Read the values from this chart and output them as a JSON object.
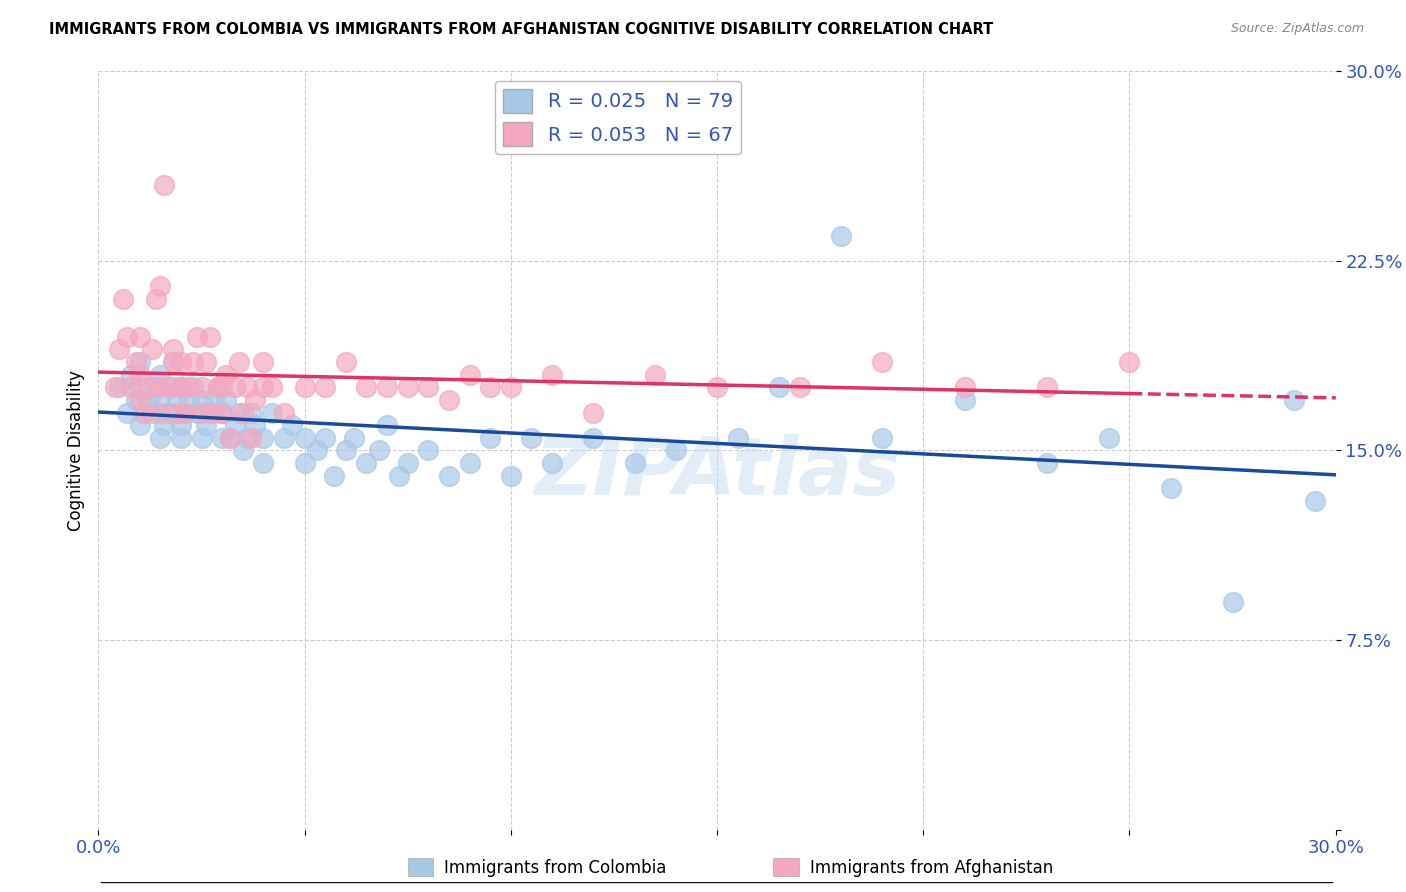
{
  "title": "IMMIGRANTS FROM COLOMBIA VS IMMIGRANTS FROM AFGHANISTAN COGNITIVE DISABILITY CORRELATION CHART",
  "source": "Source: ZipAtlas.com",
  "ylabel": "Cognitive Disability",
  "xlim": [
    0.0,
    0.3
  ],
  "ylim": [
    0.0,
    0.3
  ],
  "xticks": [
    0.0,
    0.05,
    0.1,
    0.15,
    0.2,
    0.25,
    0.3
  ],
  "yticks": [
    0.0,
    0.075,
    0.15,
    0.225,
    0.3
  ],
  "xtick_labels": [
    "0.0%",
    "",
    "",
    "",
    "",
    "",
    "30.0%"
  ],
  "ytick_labels": [
    "",
    "7.5%",
    "15.0%",
    "22.5%",
    "30.0%"
  ],
  "colombia_color": "#a8c8e8",
  "afghanistan_color": "#f4a8c0",
  "colombia_line_color": "#1a4a9a",
  "afghanistan_line_color": "#dd3366",
  "R_colombia": 0.025,
  "N_colombia": 79,
  "R_afghanistan": 0.053,
  "N_afghanistan": 67,
  "legend_label_colombia": "Immigrants from Colombia",
  "legend_label_afghanistan": "Immigrants from Afghanistan",
  "watermark": "ZIPAtlas",
  "colombia_x": [
    0.005,
    0.007,
    0.008,
    0.009,
    0.01,
    0.01,
    0.01,
    0.012,
    0.013,
    0.014,
    0.015,
    0.015,
    0.015,
    0.016,
    0.017,
    0.018,
    0.018,
    0.019,
    0.02,
    0.02,
    0.02,
    0.021,
    0.022,
    0.023,
    0.024,
    0.025,
    0.025,
    0.026,
    0.027,
    0.028,
    0.029,
    0.03,
    0.03,
    0.031,
    0.032,
    0.033,
    0.034,
    0.035,
    0.036,
    0.037,
    0.038,
    0.04,
    0.04,
    0.042,
    0.045,
    0.047,
    0.05,
    0.05,
    0.053,
    0.055,
    0.057,
    0.06,
    0.062,
    0.065,
    0.068,
    0.07,
    0.073,
    0.075,
    0.08,
    0.085,
    0.09,
    0.095,
    0.1,
    0.105,
    0.11,
    0.12,
    0.13,
    0.14,
    0.155,
    0.165,
    0.18,
    0.19,
    0.21,
    0.23,
    0.245,
    0.26,
    0.275,
    0.29,
    0.295
  ],
  "colombia_y": [
    0.175,
    0.165,
    0.18,
    0.17,
    0.16,
    0.175,
    0.185,
    0.17,
    0.165,
    0.175,
    0.155,
    0.17,
    0.18,
    0.16,
    0.165,
    0.175,
    0.185,
    0.17,
    0.155,
    0.16,
    0.175,
    0.165,
    0.17,
    0.175,
    0.165,
    0.155,
    0.17,
    0.16,
    0.165,
    0.17,
    0.175,
    0.155,
    0.165,
    0.17,
    0.155,
    0.16,
    0.165,
    0.15,
    0.155,
    0.165,
    0.16,
    0.145,
    0.155,
    0.165,
    0.155,
    0.16,
    0.145,
    0.155,
    0.15,
    0.155,
    0.14,
    0.15,
    0.155,
    0.145,
    0.15,
    0.16,
    0.14,
    0.145,
    0.15,
    0.14,
    0.145,
    0.155,
    0.14,
    0.155,
    0.145,
    0.155,
    0.145,
    0.15,
    0.155,
    0.175,
    0.235,
    0.155,
    0.17,
    0.145,
    0.155,
    0.135,
    0.09,
    0.17,
    0.13
  ],
  "afghanistan_x": [
    0.004,
    0.005,
    0.006,
    0.007,
    0.008,
    0.009,
    0.01,
    0.01,
    0.01,
    0.011,
    0.012,
    0.013,
    0.014,
    0.015,
    0.015,
    0.015,
    0.016,
    0.017,
    0.018,
    0.018,
    0.019,
    0.02,
    0.02,
    0.021,
    0.022,
    0.023,
    0.024,
    0.025,
    0.025,
    0.026,
    0.027,
    0.028,
    0.029,
    0.03,
    0.03,
    0.031,
    0.032,
    0.033,
    0.034,
    0.035,
    0.036,
    0.037,
    0.038,
    0.04,
    0.04,
    0.042,
    0.045,
    0.05,
    0.055,
    0.06,
    0.065,
    0.07,
    0.075,
    0.08,
    0.085,
    0.09,
    0.095,
    0.1,
    0.11,
    0.12,
    0.135,
    0.15,
    0.17,
    0.19,
    0.21,
    0.23,
    0.25
  ],
  "afghanistan_y": [
    0.175,
    0.19,
    0.21,
    0.195,
    0.175,
    0.185,
    0.17,
    0.18,
    0.195,
    0.165,
    0.175,
    0.19,
    0.21,
    0.165,
    0.175,
    0.215,
    0.255,
    0.175,
    0.185,
    0.19,
    0.165,
    0.175,
    0.185,
    0.165,
    0.175,
    0.185,
    0.195,
    0.165,
    0.175,
    0.185,
    0.195,
    0.165,
    0.175,
    0.165,
    0.175,
    0.18,
    0.155,
    0.175,
    0.185,
    0.165,
    0.175,
    0.155,
    0.17,
    0.175,
    0.185,
    0.175,
    0.165,
    0.175,
    0.175,
    0.185,
    0.175,
    0.175,
    0.175,
    0.175,
    0.17,
    0.18,
    0.175,
    0.175,
    0.18,
    0.165,
    0.18,
    0.175,
    0.175,
    0.185,
    0.175,
    0.175,
    0.185
  ]
}
